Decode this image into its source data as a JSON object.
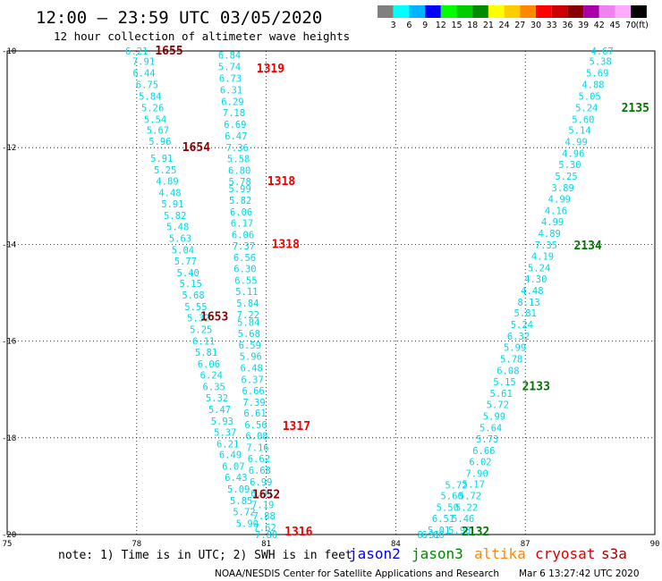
{
  "header": {
    "title": "12:00 — 23:59 UTC 03/05/2020",
    "subtitle": "12 hour collection of altimeter wave heights"
  },
  "color_scale": {
    "colors": [
      "#808080",
      "#00ffff",
      "#00b4ff",
      "#0000ff",
      "#00ff00",
      "#00cd00",
      "#008b00",
      "#ffff00",
      "#ffcc00",
      "#ff8800",
      "#ff0000",
      "#cc0000",
      "#880000",
      "#aa00aa",
      "#ee82ee",
      "#ffaaff",
      "#000000"
    ],
    "labels": [
      "3",
      "6",
      "9",
      "12",
      "15",
      "18",
      "21",
      "24",
      "27",
      "30",
      "33",
      "36",
      "39",
      "42",
      "45",
      "70"
    ],
    "unit": "(ft)"
  },
  "chart_data": {
    "type": "scatter",
    "x_ticks": [
      "75",
      "78",
      "81",
      "84",
      "87",
      "90"
    ],
    "y_ticks": [
      "-10",
      "-12",
      "-14",
      "-16",
      "-18",
      "-20"
    ],
    "xlim": [
      75,
      90
    ],
    "ylim": [
      -20,
      -10
    ],
    "grid": true,
    "value_color": "#00d8e8",
    "tracks": [
      {
        "name": "track-a",
        "points": [
          [
            78,
            -10,
            "6.21"
          ],
          [
            78.16,
            -10.21,
            "7.91"
          ],
          [
            78.17,
            -10.45,
            "6.44"
          ],
          [
            78.24,
            -10.69,
            "6.75"
          ],
          [
            78.31,
            -10.93,
            "5.84"
          ],
          [
            78.37,
            -11.17,
            "5.26"
          ],
          [
            78.43,
            -11.41,
            "5.54"
          ],
          [
            78.49,
            -11.64,
            "5.67"
          ],
          [
            78.54,
            -11.87,
            "5.96"
          ],
          [
            78.58,
            -12.22,
            "5.91"
          ],
          [
            78.66,
            -12.46,
            "5.25"
          ],
          [
            78.71,
            -12.69,
            "4.89"
          ],
          [
            78.77,
            -12.93,
            "4.48"
          ],
          [
            78.83,
            -13.16,
            "5.91"
          ],
          [
            78.89,
            -13.4,
            "5.82"
          ],
          [
            78.95,
            -13.63,
            "5.48"
          ],
          [
            79.01,
            -13.87,
            "5.63"
          ],
          [
            79.07,
            -14.11,
            "5.04"
          ],
          [
            79.13,
            -14.34,
            "5.77"
          ],
          [
            79.19,
            -14.58,
            "5.40"
          ],
          [
            79.25,
            -14.81,
            "5.15"
          ],
          [
            79.31,
            -15.05,
            "5.68"
          ],
          [
            79.37,
            -15.29,
            "5.55"
          ],
          [
            79.43,
            -15.52,
            "5.32"
          ],
          [
            79.49,
            -15.76,
            "5.25"
          ],
          [
            79.55,
            -16.0,
            "6.11"
          ],
          [
            79.61,
            -16.23,
            "5.81"
          ],
          [
            79.67,
            -16.47,
            "6.06"
          ],
          [
            79.73,
            -16.7,
            "6.24"
          ],
          [
            79.79,
            -16.94,
            "6.35"
          ],
          [
            79.86,
            -17.17,
            "5.32"
          ],
          [
            79.92,
            -17.41,
            "5.47"
          ],
          [
            79.98,
            -17.65,
            "5.93"
          ],
          [
            80.05,
            -17.88,
            "5.37"
          ],
          [
            80.11,
            -18.12,
            "6.21"
          ],
          [
            80.17,
            -18.35,
            "6.49"
          ],
          [
            80.24,
            -18.59,
            "6.07"
          ],
          [
            80.3,
            -18.82,
            "6.43"
          ],
          [
            80.36,
            -19.06,
            "5.09"
          ],
          [
            80.42,
            -19.3,
            "5.85"
          ],
          [
            80.49,
            -19.53,
            "5.72"
          ],
          [
            80.56,
            -19.77,
            "5.90"
          ]
        ]
      },
      {
        "name": "track-b",
        "points": [
          [
            80.15,
            -10.08,
            "6.84"
          ],
          [
            80.15,
            -10.32,
            "5.74"
          ],
          [
            80.17,
            -10.56,
            "6.73"
          ],
          [
            80.19,
            -10.8,
            "6.31"
          ],
          [
            80.22,
            -11.04,
            "6.29"
          ],
          [
            80.25,
            -11.28,
            "7.18"
          ],
          [
            80.28,
            -11.52,
            "6.69"
          ],
          [
            80.3,
            -11.76,
            "6.47"
          ],
          [
            80.33,
            -12.0,
            "7.36"
          ],
          [
            80.36,
            -12.23,
            "5.58"
          ],
          [
            80.38,
            -12.47,
            "6.80"
          ],
          [
            80.39,
            -12.7,
            "5.78"
          ],
          [
            80.39,
            -12.85,
            "5.99"
          ],
          [
            80.4,
            -13.09,
            "5.82"
          ],
          [
            80.42,
            -13.33,
            "6.06"
          ],
          [
            80.44,
            -13.56,
            "6.17"
          ],
          [
            80.46,
            -13.8,
            "6.06"
          ],
          [
            80.48,
            -14.03,
            "7.37"
          ],
          [
            80.5,
            -14.27,
            "6.56"
          ],
          [
            80.51,
            -14.5,
            "6.30"
          ],
          [
            80.53,
            -14.74,
            "6.55"
          ],
          [
            80.55,
            -14.97,
            "5.11"
          ],
          [
            80.57,
            -15.21,
            "5.84"
          ],
          [
            80.58,
            -15.45,
            "7.22"
          ],
          [
            80.59,
            -15.61,
            "5.84"
          ],
          [
            80.6,
            -15.84,
            "5.68"
          ],
          [
            80.62,
            -16.08,
            "6.59"
          ],
          [
            80.64,
            -16.31,
            "5.96"
          ],
          [
            80.66,
            -16.55,
            "6.48"
          ],
          [
            80.68,
            -16.79,
            "6.37"
          ],
          [
            80.7,
            -17.02,
            "6.66"
          ],
          [
            80.72,
            -17.26,
            "7.39"
          ],
          [
            80.74,
            -17.49,
            "6.61"
          ],
          [
            80.76,
            -17.73,
            "6.56"
          ],
          [
            80.78,
            -17.96,
            "6.08"
          ],
          [
            80.8,
            -18.2,
            "7.16"
          ],
          [
            80.83,
            -18.43,
            "6.62"
          ],
          [
            80.85,
            -18.67,
            "6.68"
          ],
          [
            80.88,
            -18.91,
            "6.99"
          ],
          [
            80.9,
            -19.14,
            "6.91"
          ],
          [
            80.92,
            -19.38,
            "7.19"
          ],
          [
            80.95,
            -19.61,
            "7.88"
          ],
          [
            80.97,
            -19.85,
            "7.62"
          ],
          [
            81.0,
            -20.0,
            "7.80"
          ]
        ]
      },
      {
        "name": "track-c",
        "points": [
          [
            88.78,
            -10.0,
            "4.67"
          ],
          [
            88.74,
            -10.21,
            "5.38"
          ],
          [
            88.67,
            -10.45,
            "5.69"
          ],
          [
            88.57,
            -10.69,
            "4.88"
          ],
          [
            88.49,
            -10.93,
            "5.05"
          ],
          [
            88.42,
            -11.17,
            "5.24"
          ],
          [
            88.34,
            -11.41,
            "5.60"
          ],
          [
            88.26,
            -11.64,
            "5.14"
          ],
          [
            88.18,
            -11.88,
            "4.99"
          ],
          [
            88.11,
            -12.12,
            "4.96"
          ],
          [
            88.03,
            -12.35,
            "5.30"
          ],
          [
            87.95,
            -12.59,
            "5.25"
          ],
          [
            87.87,
            -12.83,
            "3.89"
          ],
          [
            87.79,
            -13.06,
            "4.99"
          ],
          [
            87.71,
            -13.3,
            "4.16"
          ],
          [
            87.63,
            -13.53,
            "4.99"
          ],
          [
            87.56,
            -13.77,
            "4.89"
          ],
          [
            87.48,
            -14.01,
            "7.35"
          ],
          [
            87.4,
            -14.24,
            "4.19"
          ],
          [
            87.32,
            -14.48,
            "5.24"
          ],
          [
            87.24,
            -14.71,
            "4.30"
          ],
          [
            87.16,
            -14.95,
            "4.48"
          ],
          [
            87.08,
            -15.19,
            "8.13"
          ],
          [
            87.0,
            -15.42,
            "5.81"
          ],
          [
            86.92,
            -15.66,
            "5.24"
          ],
          [
            86.84,
            -15.9,
            "6.32"
          ],
          [
            86.76,
            -16.13,
            "5.99"
          ],
          [
            86.68,
            -16.37,
            "5.78"
          ],
          [
            86.6,
            -16.61,
            "6.08"
          ],
          [
            86.52,
            -16.84,
            "5.15"
          ],
          [
            86.44,
            -17.08,
            "5.61"
          ],
          [
            86.36,
            -17.31,
            "5.72"
          ],
          [
            86.28,
            -17.55,
            "5.99"
          ],
          [
            86.2,
            -17.79,
            "5.64"
          ],
          [
            86.12,
            -18.02,
            "5.73"
          ],
          [
            86.04,
            -18.26,
            "6.66"
          ],
          [
            85.96,
            -18.49,
            "6.02"
          ],
          [
            85.88,
            -18.73,
            "7.90"
          ],
          [
            85.8,
            -18.96,
            "5.17"
          ],
          [
            85.72,
            -19.2,
            "5.72"
          ],
          [
            85.64,
            -19.44,
            "5.22"
          ],
          [
            85.56,
            -19.67,
            "5.46"
          ],
          [
            85.48,
            -19.91,
            "5.98"
          ]
        ]
      },
      {
        "name": "track-c-lower",
        "points": [
          [
            85.4,
            -18.97,
            "5.72"
          ],
          [
            85.3,
            -19.2,
            "5.60"
          ],
          [
            85.2,
            -19.44,
            "5.50"
          ],
          [
            85.1,
            -19.67,
            "6.51"
          ],
          [
            85.0,
            -19.91,
            "5.01"
          ],
          [
            84.86,
            -20.0,
            "6.06"
          ],
          [
            84.76,
            -20.0,
            "8.31"
          ]
        ]
      }
    ],
    "pass_labels": [
      {
        "text": "1655",
        "x": 78.75,
        "y": -10.0,
        "color": "#880000"
      },
      {
        "text": "1319",
        "x": 81.1,
        "y": -10.37,
        "color": "#ee0000"
      },
      {
        "text": "1654",
        "x": 79.38,
        "y": -12.0,
        "color": "#880000"
      },
      {
        "text": "1318",
        "x": 81.35,
        "y": -12.7,
        "color": "#ee0000"
      },
      {
        "text": "1318",
        "x": 81.45,
        "y": -14.0,
        "color": "#ee0000"
      },
      {
        "text": "1653",
        "x": 79.8,
        "y": -15.5,
        "color": "#880000"
      },
      {
        "text": "1317",
        "x": 81.7,
        "y": -17.76,
        "color": "#ee0000"
      },
      {
        "text": "1652",
        "x": 81.0,
        "y": -19.18,
        "color": "#880000"
      },
      {
        "text": "1316",
        "x": 81.75,
        "y": -19.94,
        "color": "#ee0000"
      },
      {
        "text": "2135",
        "x": 89.55,
        "y": -11.18,
        "color": "#007700"
      },
      {
        "text": "2134",
        "x": 88.45,
        "y": -14.03,
        "color": "#007700"
      },
      {
        "text": "2133",
        "x": 87.25,
        "y": -16.94,
        "color": "#007700"
      },
      {
        "text": "2132",
        "x": 85.85,
        "y": -19.94,
        "color": "#007700"
      }
    ]
  },
  "footer": {
    "note": "note: 1) Time is in UTC; 2) SWH is in feet",
    "satellites": [
      {
        "name": "jason2",
        "color": "#0000ee"
      },
      {
        "name": "jason3",
        "color": "#008800"
      },
      {
        "name": "altika",
        "color": "#ff8800"
      },
      {
        "name": "cryosat",
        "color": "#dd0000"
      },
      {
        "name": "s3a",
        "color": "#aa0000"
      }
    ],
    "credit": "NOAA/NESDIS Center for Satellite Applications and Research",
    "timestamp": "Mar  6 13:27:42 UTC 2020"
  }
}
